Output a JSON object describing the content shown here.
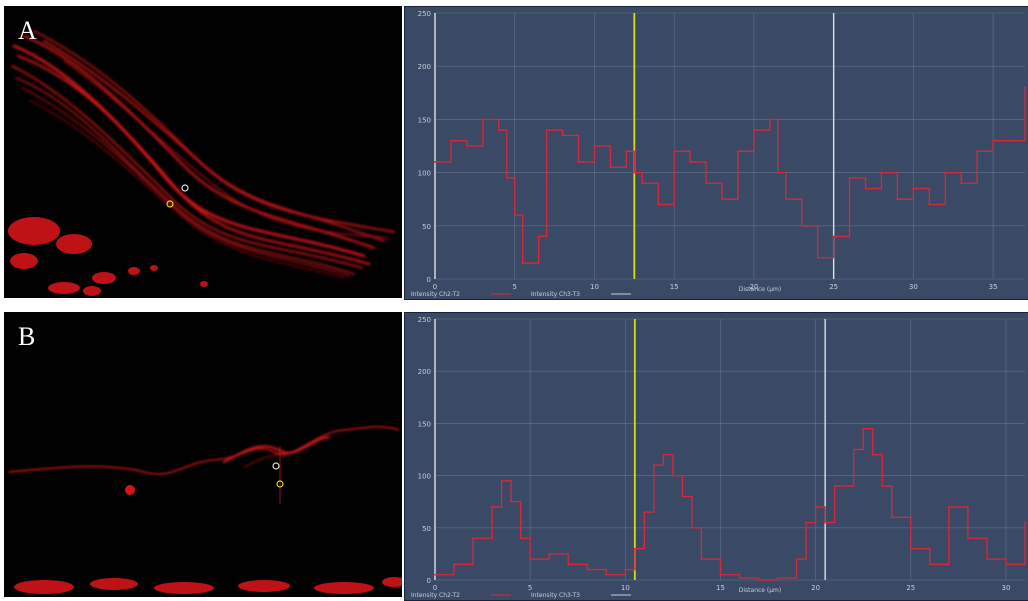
{
  "panels": [
    {
      "letter": "A"
    },
    {
      "letter": "B"
    }
  ],
  "colors": {
    "plot_bg": "#3a4a66",
    "grid": "#7f8aa0",
    "signal": "#d8283a",
    "marker_white": "#e0e0e0",
    "marker_yellow": "#d6dd12",
    "tick_text": "#c8cedb"
  },
  "chart_data": [
    {
      "type": "line",
      "title": "",
      "xlabel": "Distance (µm)",
      "ylabel": "",
      "xlim": [
        0,
        37
      ],
      "ylim": [
        0,
        250
      ],
      "x_ticks": [
        "0",
        "5",
        "10",
        "15",
        "20",
        "25",
        "30",
        "35"
      ],
      "y_ticks": [
        "0",
        "50",
        "100",
        "150",
        "200",
        "250"
      ],
      "grid": true,
      "legend": [
        "Intensity Ch2-T2",
        "Intensity Ch3-T3"
      ],
      "vertical_markers": [
        {
          "x": 0.0,
          "color": "white"
        },
        {
          "x": 12.5,
          "color": "yellow"
        },
        {
          "x": 25.0,
          "color": "white"
        }
      ],
      "series": [
        {
          "name": "Intensity Ch2-T2",
          "x": [
            0,
            1,
            2,
            3,
            4,
            4.5,
            5,
            5.5,
            6,
            6.5,
            7,
            8,
            9,
            10,
            11,
            12,
            12.5,
            13,
            14,
            15,
            16,
            17,
            18,
            19,
            20,
            21,
            21.5,
            22,
            22.5,
            23,
            24,
            24.5,
            25,
            26,
            27,
            28,
            29,
            30,
            31,
            32,
            33,
            34,
            35,
            36,
            37
          ],
          "values": [
            110,
            130,
            125,
            150,
            140,
            95,
            60,
            15,
            15,
            40,
            140,
            135,
            110,
            125,
            105,
            120,
            100,
            90,
            70,
            120,
            110,
            90,
            75,
            120,
            140,
            150,
            100,
            75,
            75,
            50,
            20,
            20,
            40,
            95,
            85,
            100,
            75,
            85,
            70,
            100,
            90,
            120,
            130,
            130,
            180
          ]
        }
      ]
    },
    {
      "type": "line",
      "title": "",
      "xlabel": "Distance (µm)",
      "ylabel": "",
      "xlim": [
        0,
        31
      ],
      "ylim": [
        0,
        250
      ],
      "x_ticks": [
        "0",
        "5",
        "10",
        "15",
        "20",
        "25",
        "30"
      ],
      "y_ticks": [
        "0",
        "50",
        "100",
        "150",
        "200",
        "250"
      ],
      "grid": true,
      "legend": [
        "Intensity Ch2-T2",
        "Intensity Ch3-T3"
      ],
      "vertical_markers": [
        {
          "x": 0.0,
          "color": "white"
        },
        {
          "x": 10.5,
          "color": "yellow"
        },
        {
          "x": 20.5,
          "color": "white"
        }
      ],
      "series": [
        {
          "name": "Intensity Ch2-T2",
          "x": [
            0,
            1,
            2,
            3,
            3.5,
            4,
            4.5,
            5,
            6,
            7,
            8,
            9,
            10,
            10.5,
            11,
            11.5,
            12,
            12.5,
            13,
            13.5,
            14,
            15,
            16,
            17,
            18,
            19,
            19.5,
            20,
            20.5,
            21,
            22,
            22.5,
            23,
            23.5,
            24,
            25,
            26,
            27,
            28,
            29,
            30,
            31
          ],
          "values": [
            5,
            15,
            40,
            70,
            95,
            75,
            40,
            20,
            25,
            15,
            10,
            5,
            10,
            30,
            65,
            110,
            120,
            100,
            80,
            50,
            20,
            5,
            2,
            0,
            2,
            20,
            55,
            70,
            55,
            90,
            125,
            145,
            120,
            90,
            60,
            30,
            15,
            70,
            40,
            20,
            15,
            55
          ]
        }
      ]
    }
  ]
}
